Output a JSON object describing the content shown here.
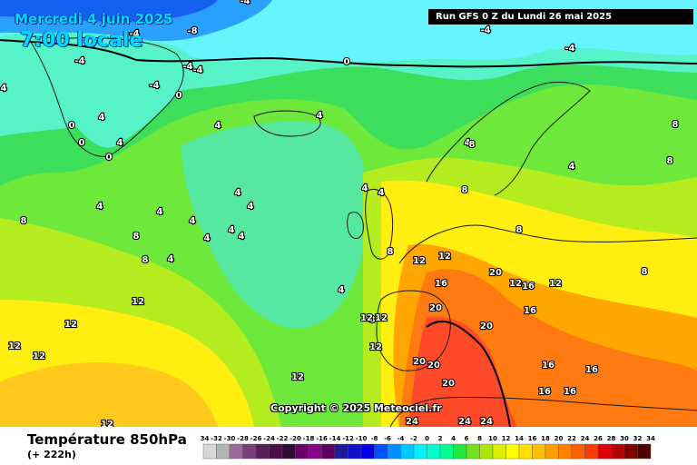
{
  "header": {
    "valid_date": "Mercredi 4 juin 2025",
    "valid_hour": "7:00 locale",
    "run_info": "Run GFS 0 Z du Lundi 26 mai 2025"
  },
  "copyright": "Copyright © 2025 Meteociel.fr",
  "footer": {
    "variable": "Température 850hPa",
    "lead_time": "(+ 222h)"
  },
  "legend": {
    "ticks": [
      "-34",
      "-32",
      "-30",
      "-28",
      "-26",
      "-24",
      "-22",
      "-20",
      "-18",
      "-16",
      "-14",
      "-12",
      "-10",
      "-8",
      "-6",
      "-4",
      "-2",
      "0",
      "2",
      "4",
      "6",
      "8",
      "10",
      "12",
      "14",
      "16",
      "18",
      "20",
      "22",
      "24",
      "26",
      "28",
      "30",
      "32",
      "34"
    ],
    "colors": [
      "#d8d8d8",
      "#b4b4b4",
      "#9a6b9a",
      "#7a3f7a",
      "#5a1f5a",
      "#4a0f4a",
      "#300a30",
      "#6a006a",
      "#8a0090",
      "#5a005a",
      "#1a1a9a",
      "#1010c8",
      "#0000e8",
      "#0050ff",
      "#0090ff",
      "#00c8ff",
      "#00f0ff",
      "#00ffcc",
      "#00ff90",
      "#20e840",
      "#70e020",
      "#a8e800",
      "#d8f000",
      "#ffff00",
      "#ffe000",
      "#ffc000",
      "#ffa000",
      "#ff8000",
      "#ff6000",
      "#ff3a00",
      "#e00000",
      "#b00000",
      "#800000",
      "#500000"
    ]
  },
  "map_labels": [
    {
      "t": "-4"
    },
    {
      "t": "-8"
    },
    {
      "t": "-4"
    },
    {
      "t": "-4"
    },
    {
      "t": "-4"
    },
    {
      "t": "-4"
    },
    {
      "t": "-4"
    },
    {
      "t": "-4"
    },
    {
      "t": "-4"
    },
    {
      "t": "0"
    },
    {
      "t": "0"
    },
    {
      "t": "0"
    },
    {
      "t": "0"
    },
    {
      "t": "0"
    },
    {
      "t": "4"
    },
    {
      "t": "4"
    },
    {
      "t": "4"
    },
    {
      "t": "4"
    },
    {
      "t": "4"
    },
    {
      "t": "4"
    },
    {
      "t": "4"
    },
    {
      "t": "4"
    },
    {
      "t": "4"
    },
    {
      "t": "4"
    },
    {
      "t": "4"
    },
    {
      "t": "4"
    },
    {
      "t": "4"
    },
    {
      "t": "4"
    },
    {
      "t": "4"
    },
    {
      "t": "4"
    },
    {
      "t": "4"
    },
    {
      "t": "4"
    },
    {
      "t": "4"
    },
    {
      "t": "8"
    },
    {
      "t": "8"
    },
    {
      "t": "8"
    },
    {
      "t": "8"
    },
    {
      "t": "8"
    },
    {
      "t": "8"
    },
    {
      "t": "8"
    },
    {
      "t": "8"
    },
    {
      "t": "8"
    },
    {
      "t": "8"
    },
    {
      "t": "8"
    },
    {
      "t": "12"
    },
    {
      "t": "12"
    },
    {
      "t": "12"
    },
    {
      "t": "12"
    },
    {
      "t": "12"
    },
    {
      "t": "12"
    },
    {
      "t": "12"
    },
    {
      "t": "12"
    },
    {
      "t": "12"
    },
    {
      "t": "12"
    },
    {
      "t": "12"
    },
    {
      "t": "12"
    },
    {
      "t": "12"
    },
    {
      "t": "16"
    },
    {
      "t": "16"
    },
    {
      "t": "16"
    },
    {
      "t": "16"
    },
    {
      "t": "16"
    },
    {
      "t": "16"
    },
    {
      "t": "16"
    },
    {
      "t": "20"
    },
    {
      "t": "20"
    },
    {
      "t": "20"
    },
    {
      "t": "20"
    },
    {
      "t": "20"
    },
    {
      "t": "20"
    },
    {
      "t": "24"
    },
    {
      "t": "24"
    },
    {
      "t": "24"
    }
  ]
}
